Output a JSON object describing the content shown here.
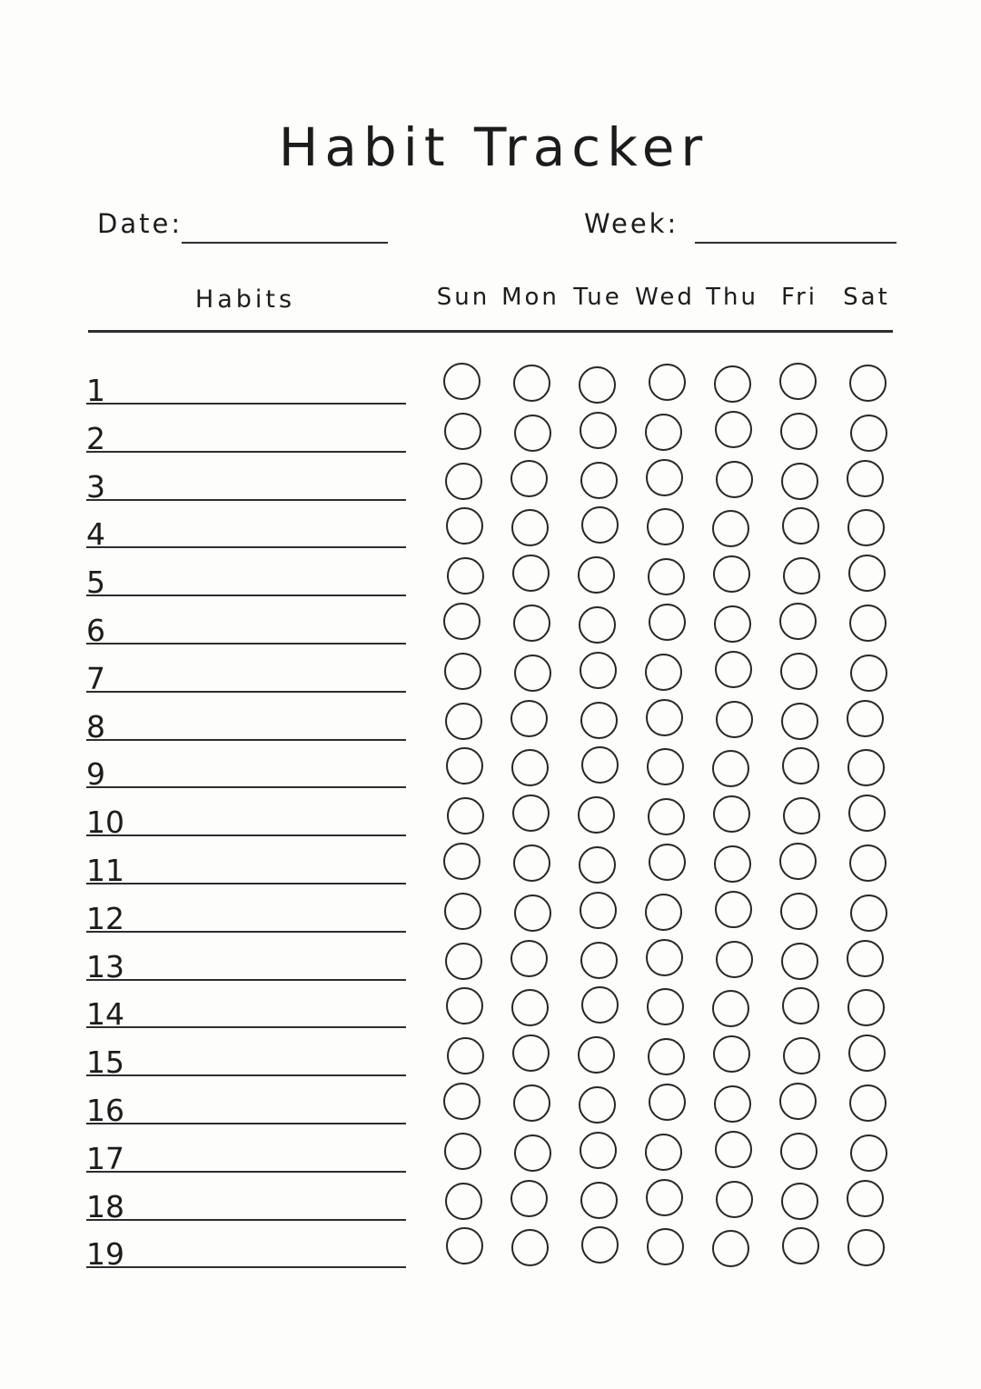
{
  "document": {
    "title": "Habit Tracker",
    "fields": {
      "date_label": "Date:",
      "date_value": "",
      "week_label": "Week:",
      "week_value": ""
    },
    "table": {
      "habits_header": "Habits",
      "day_headers": [
        "Sun",
        "Mon",
        "Tue",
        "Wed",
        "Thu",
        "Fri",
        "Sat"
      ],
      "rows": [
        {
          "number": "1",
          "habit": "",
          "checks": [
            false,
            false,
            false,
            false,
            false,
            false,
            false
          ]
        },
        {
          "number": "2",
          "habit": "",
          "checks": [
            false,
            false,
            false,
            false,
            false,
            false,
            false
          ]
        },
        {
          "number": "3",
          "habit": "",
          "checks": [
            false,
            false,
            false,
            false,
            false,
            false,
            false
          ]
        },
        {
          "number": "4",
          "habit": "",
          "checks": [
            false,
            false,
            false,
            false,
            false,
            false,
            false
          ]
        },
        {
          "number": "5",
          "habit": "",
          "checks": [
            false,
            false,
            false,
            false,
            false,
            false,
            false
          ]
        },
        {
          "number": "6",
          "habit": "",
          "checks": [
            false,
            false,
            false,
            false,
            false,
            false,
            false
          ]
        },
        {
          "number": "7",
          "habit": "",
          "checks": [
            false,
            false,
            false,
            false,
            false,
            false,
            false
          ]
        },
        {
          "number": "8",
          "habit": "",
          "checks": [
            false,
            false,
            false,
            false,
            false,
            false,
            false
          ]
        },
        {
          "number": "9",
          "habit": "",
          "checks": [
            false,
            false,
            false,
            false,
            false,
            false,
            false
          ]
        },
        {
          "number": "10",
          "habit": "",
          "checks": [
            false,
            false,
            false,
            false,
            false,
            false,
            false
          ]
        },
        {
          "number": "11",
          "habit": "",
          "checks": [
            false,
            false,
            false,
            false,
            false,
            false,
            false
          ]
        },
        {
          "number": "12",
          "habit": "",
          "checks": [
            false,
            false,
            false,
            false,
            false,
            false,
            false
          ]
        },
        {
          "number": "13",
          "habit": "",
          "checks": [
            false,
            false,
            false,
            false,
            false,
            false,
            false
          ]
        },
        {
          "number": "14",
          "habit": "",
          "checks": [
            false,
            false,
            false,
            false,
            false,
            false,
            false
          ]
        },
        {
          "number": "15",
          "habit": "",
          "checks": [
            false,
            false,
            false,
            false,
            false,
            false,
            false
          ]
        },
        {
          "number": "16",
          "habit": "",
          "checks": [
            false,
            false,
            false,
            false,
            false,
            false,
            false
          ]
        },
        {
          "number": "17",
          "habit": "",
          "checks": [
            false,
            false,
            false,
            false,
            false,
            false,
            false
          ]
        },
        {
          "number": "18",
          "habit": "",
          "checks": [
            false,
            false,
            false,
            false,
            false,
            false,
            false
          ]
        },
        {
          "number": "19",
          "habit": "",
          "checks": [
            false,
            false,
            false,
            false,
            false,
            false,
            false
          ]
        }
      ]
    },
    "colors": {
      "ink": "#1c1c1c",
      "line": "#2e2e2e",
      "paper": "#fdfdfc"
    }
  }
}
